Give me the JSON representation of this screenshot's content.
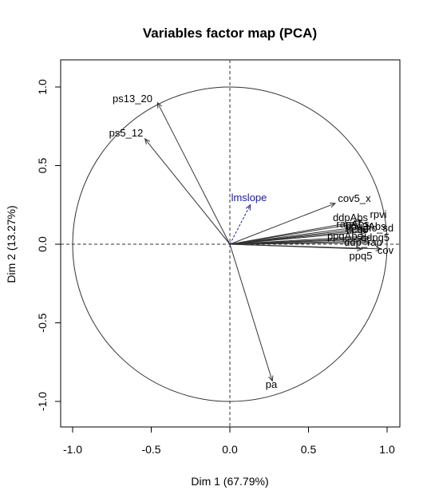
{
  "chart_data": {
    "type": "scatter",
    "title": "Variables factor map (PCA)",
    "xlabel": "Dim 1 (67.79%)",
    "ylabel": "Dim 2 (13.27%)",
    "xlim": [
      -1.0,
      1.0
    ],
    "ylim": [
      -1.0,
      1.0
    ],
    "xticks": [
      "-1.0",
      "-0.5",
      "0.0",
      "0.5",
      "1.0"
    ],
    "yticks": [
      "-1.0",
      "-0.5",
      "0.0",
      "0.5",
      "1.0"
    ],
    "grid": false,
    "unit_circle": true,
    "variables": [
      {
        "name": "ps13_20",
        "x": -0.46,
        "y": 0.9
      },
      {
        "name": "ps5_12",
        "x": -0.54,
        "y": 0.67
      },
      {
        "name": "pa",
        "x": 0.27,
        "y": -0.87
      },
      {
        "name": "cov5_x",
        "x": 0.67,
        "y": 0.26
      },
      {
        "name": "rpvi",
        "x": 0.84,
        "y": 0.15
      },
      {
        "name": "ddpAbs",
        "x": 0.8,
        "y": 0.13
      },
      {
        "name": "rapAbs",
        "x": 0.82,
        "y": 0.11
      },
      {
        "name": "ppq3Abs",
        "x": 0.85,
        "y": 0.1
      },
      {
        "name": "dfc_sd",
        "x": 0.86,
        "y": 0.09
      },
      {
        "name": "lfcq5",
        "x": 0.87,
        "y": 0.08
      },
      {
        "name": "ppqAbs",
        "x": 0.86,
        "y": 0.05
      },
      {
        "name": "ddpq5",
        "x": 0.89,
        "y": 0.04
      },
      {
        "name": "ppq3Abs_b",
        "x": 0.84,
        "y": 0.03
      },
      {
        "name": "ddp",
        "x": 0.87,
        "y": 0.02
      },
      {
        "name": "rap",
        "x": 0.89,
        "y": 0.01
      },
      {
        "name": "ppq5",
        "x": 0.84,
        "y": -0.03
      },
      {
        "name": "cov",
        "x": 0.96,
        "y": -0.03
      }
    ],
    "printed_labels": [
      {
        "text": "ps13_20",
        "ref": "ps13_20"
      },
      {
        "text": "ps5_12",
        "ref": "ps5_12"
      },
      {
        "text": "pa",
        "ref": "pa"
      },
      {
        "text": "cov5_x",
        "ref": "cov5_x"
      },
      {
        "text": "rpvi",
        "ref": "rpvi"
      },
      {
        "text": "ddpAbs",
        "ref": "ddpAbs"
      },
      {
        "text": "rapAbs",
        "ref": "rapAbs"
      },
      {
        "text": "ppq3Abs",
        "ref": "ppq3Abs"
      },
      {
        "text": "dfc_sd",
        "ref": "dfc_sd"
      },
      {
        "text": "lfcq5",
        "ref": "lfcq5"
      },
      {
        "text": "ppqAbs",
        "ref": "ppqAbs"
      },
      {
        "text": "ddpq5",
        "ref": "ddpq5"
      },
      {
        "text": "ppq5",
        "ref": "ppq5"
      },
      {
        "text": "ddp_rap",
        "ref": "ddp"
      },
      {
        "text": "cov",
        "ref": "cov"
      }
    ],
    "supplementary": [
      {
        "name": "lmslope",
        "x": 0.13,
        "y": 0.25
      }
    ],
    "colors": {
      "active": "#333333",
      "supplementary": "#1a1a9a",
      "axes": "#000000"
    }
  }
}
